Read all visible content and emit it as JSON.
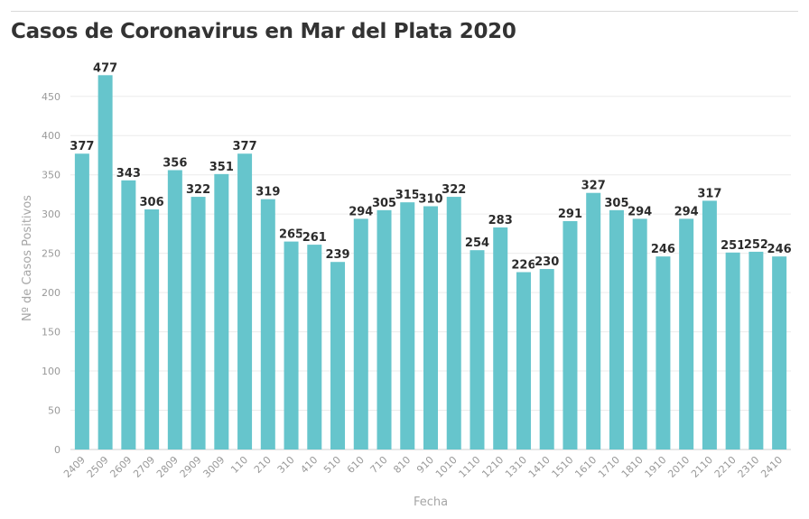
{
  "title": "Casos de Coronavirus en Mar del Plata 2020",
  "chart_data": {
    "type": "bar",
    "title": "Casos de Coronavirus en Mar del Plata 2020",
    "xlabel": "Fecha",
    "ylabel": "Nº de Casos Positivos",
    "ylim": [
      0,
      490
    ],
    "yticks": [
      0,
      50,
      100,
      150,
      200,
      250,
      300,
      350,
      400,
      450
    ],
    "grid": true,
    "bar_color": "#66c5cc",
    "categories": [
      "2409",
      "2509",
      "2609",
      "2709",
      "2809",
      "2909",
      "3009",
      "110",
      "210",
      "310",
      "410",
      "510",
      "610",
      "710",
      "810",
      "910",
      "1010",
      "1110",
      "1210",
      "1310",
      "1410",
      "1510",
      "1610",
      "1710",
      "1810",
      "1910",
      "2010",
      "2110",
      "2210",
      "2310",
      "2410"
    ],
    "values": [
      377,
      477,
      343,
      306,
      356,
      322,
      351,
      377,
      319,
      265,
      261,
      239,
      294,
      305,
      315,
      310,
      322,
      254,
      283,
      226,
      230,
      291,
      327,
      305,
      294,
      246,
      294,
      317,
      251,
      252,
      246
    ],
    "value_labels": [
      "377",
      "477",
      "343",
      "306",
      "356",
      "322",
      "351",
      "377",
      "319",
      "265",
      "261",
      "239",
      "294",
      "305",
      "315",
      "310",
      "322",
      "254",
      "283",
      "226",
      "230",
      "291",
      "327",
      "305",
      "294",
      "246",
      "294",
      "317",
      "251",
      "252",
      "246"
    ]
  }
}
